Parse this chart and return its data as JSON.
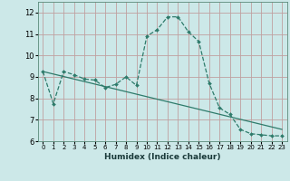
{
  "title": "",
  "xlabel": "Humidex (Indice chaleur)",
  "ylabel": "",
  "bg_color": "#cce8e8",
  "grid_color": "#c0a0a0",
  "line_color": "#2e7b6b",
  "xlim": [
    -0.5,
    23.5
  ],
  "ylim": [
    6,
    12.5
  ],
  "yticks": [
    6,
    7,
    8,
    9,
    10,
    11,
    12
  ],
  "xticks": [
    0,
    1,
    2,
    3,
    4,
    5,
    6,
    7,
    8,
    9,
    10,
    11,
    12,
    13,
    14,
    15,
    16,
    17,
    18,
    19,
    20,
    21,
    22,
    23
  ],
  "curve1_x": [
    0,
    1,
    2,
    3,
    4,
    5,
    6,
    7,
    8,
    9,
    10,
    11,
    12,
    13,
    14,
    15,
    16,
    17,
    18,
    19,
    20,
    21,
    22,
    23
  ],
  "curve1_y": [
    9.25,
    7.75,
    9.25,
    9.1,
    8.9,
    8.85,
    8.5,
    8.65,
    9.0,
    8.6,
    10.9,
    11.2,
    11.8,
    11.8,
    11.1,
    10.65,
    8.7,
    7.55,
    7.25,
    6.55,
    6.35,
    6.3,
    6.25,
    6.25
  ],
  "curve2_x": [
    0,
    23
  ],
  "curve2_y": [
    9.25,
    6.55
  ]
}
